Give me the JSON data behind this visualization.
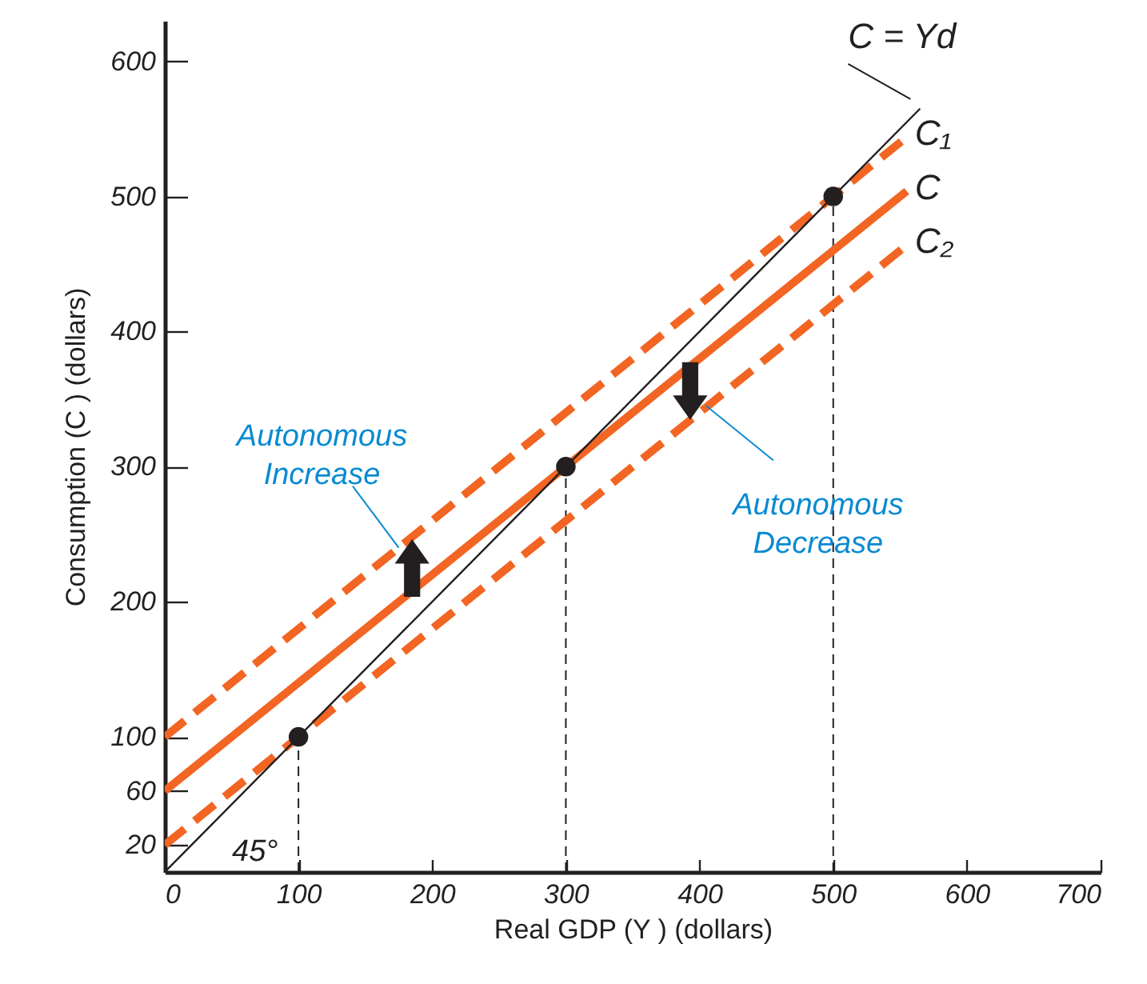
{
  "chart_data": {
    "type": "line",
    "xlabel": "Real GDP (Y ) (dollars)",
    "ylabel": "Consumption (C )  (dollars)",
    "xlim": [
      0,
      700
    ],
    "ylim": [
      0,
      630
    ],
    "xticks": [
      0,
      100,
      200,
      300,
      400,
      500,
      600,
      700
    ],
    "yticks": [
      20,
      60,
      100,
      200,
      300,
      400,
      500,
      600
    ],
    "grid": false,
    "series": [
      {
        "name": "C₁",
        "color": "#f26522",
        "x": [
          0,
          555
        ],
        "values": [
          100,
          544
        ],
        "line_style": "dashed"
      },
      {
        "name": "C",
        "color": "#f26522",
        "x": [
          0,
          555
        ],
        "values": [
          60,
          504
        ],
        "line_style": "solid"
      },
      {
        "name": "C₂",
        "color": "#f26522",
        "x": [
          0,
          555
        ],
        "values": [
          20,
          464
        ],
        "line_style": "dashed"
      },
      {
        "name": "C = Yd",
        "color": "#231f20",
        "x": [
          0,
          565
        ],
        "values": [
          0,
          565
        ],
        "line_style": "solid"
      },
      {
        "type": "scatter",
        "color": "#231f20",
        "x": [
          100,
          300,
          500
        ],
        "values": [
          100,
          300,
          500
        ],
        "marker": "circle"
      }
    ],
    "ref_lines": [
      {
        "axis": "x",
        "value": 100,
        "color": "#231f20",
        "line_style": "dashed"
      },
      {
        "axis": "x",
        "value": 300,
        "color": "#231f20",
        "line_style": "dashed"
      },
      {
        "axis": "x",
        "value": 500,
        "color": "#231f20",
        "line_style": "dashed"
      }
    ],
    "annotations": [
      {
        "text": "Autonomous Increase",
        "x": 175,
        "y": 240
      },
      {
        "text": "Autonomous Decrease",
        "x": 405,
        "y": 345
      },
      "45°"
    ]
  }
}
